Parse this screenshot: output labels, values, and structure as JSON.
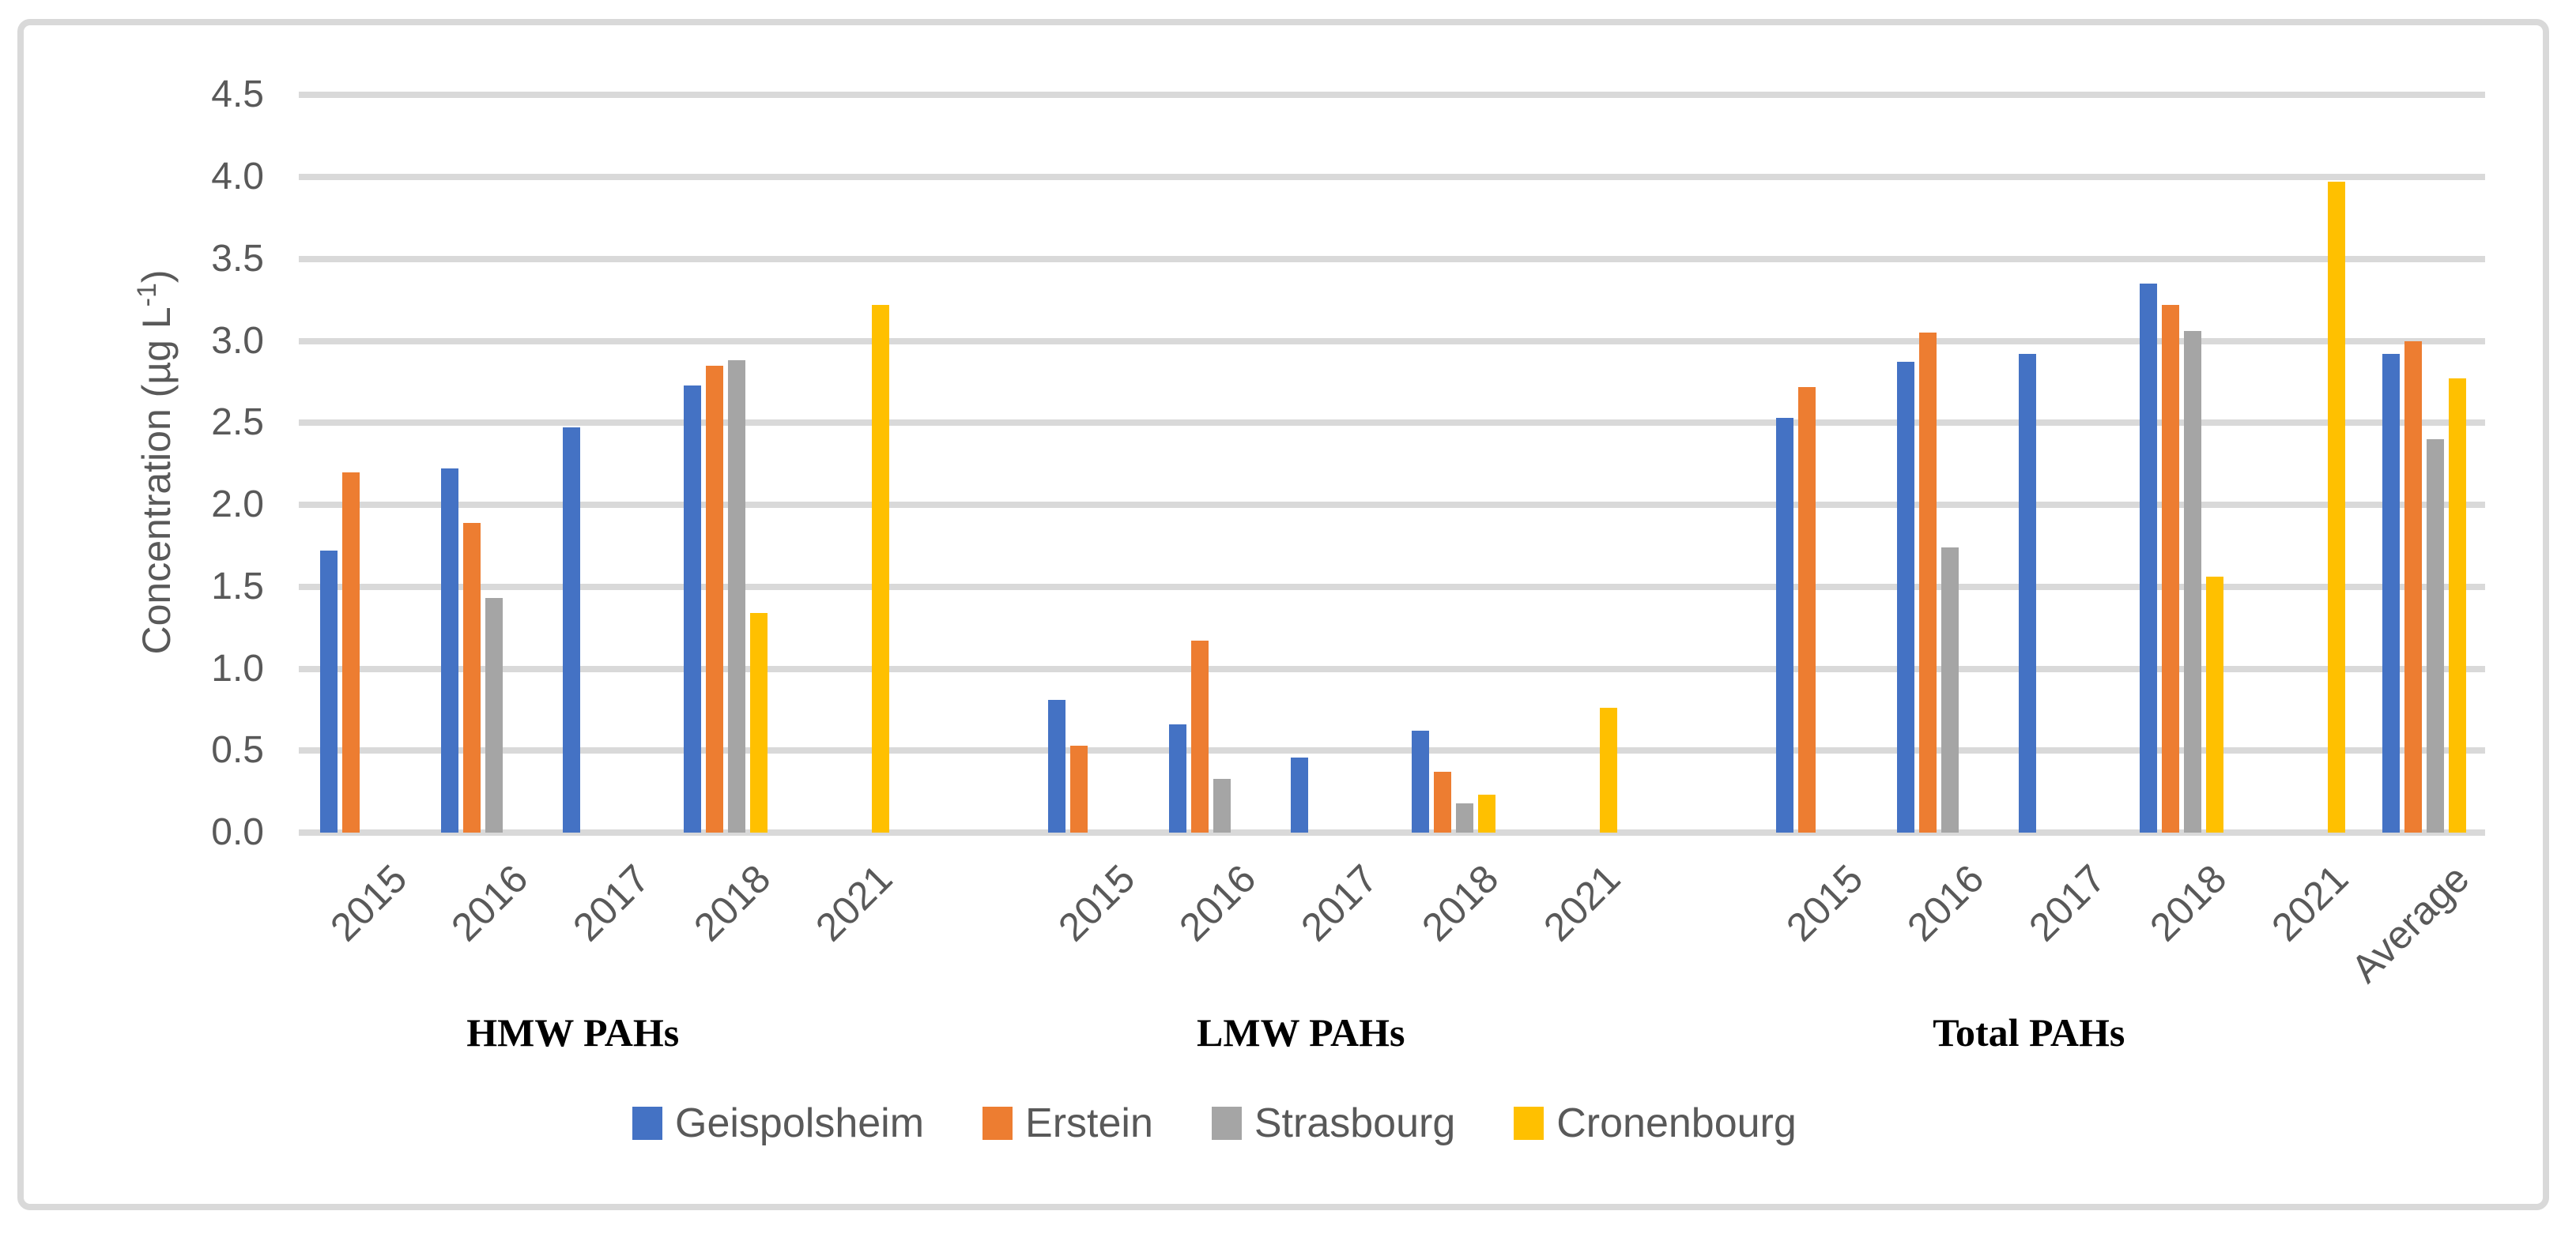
{
  "chart_data": {
    "type": "bar",
    "title": "",
    "ylabel": {
      "prefix": "Concentration (µg L",
      "sup": "-1",
      "suffix": ")"
    },
    "ylabel_text": "Concentration (µg L⁻¹)",
    "ylim": [
      0,
      4.5
    ],
    "ytick_step": 0.5,
    "ytick_labels": [
      "0.0",
      "0.5",
      "1.0",
      "1.5",
      "2.0",
      "2.5",
      "3.0",
      "3.5",
      "4.0",
      "4.5"
    ],
    "grid": true,
    "legend_position": "bottom",
    "series": [
      {
        "name": "Geispolsheim",
        "color": "#4472C4"
      },
      {
        "name": "Erstein",
        "color": "#ED7D31"
      },
      {
        "name": "Strasbourg",
        "color": "#A5A5A5"
      },
      {
        "name": "Cronenbourg",
        "color": "#FFC000"
      }
    ],
    "groups": [
      {
        "label": "HMW PAHs",
        "clusters": [
          {
            "category": "2015",
            "values": [
              1.72,
              2.2,
              null,
              null
            ]
          },
          {
            "category": "2016",
            "values": [
              2.22,
              1.89,
              1.43,
              null
            ]
          },
          {
            "category": "2017",
            "values": [
              2.47,
              null,
              null,
              null
            ]
          },
          {
            "category": "2018",
            "values": [
              2.73,
              2.85,
              2.88,
              1.34
            ]
          },
          {
            "category": "2021",
            "values": [
              null,
              null,
              null,
              3.22
            ]
          }
        ]
      },
      {
        "label": "LMW PAHs",
        "clusters": [
          {
            "category": "2015",
            "values": [
              0.81,
              0.53,
              null,
              null
            ]
          },
          {
            "category": "2016",
            "values": [
              0.66,
              1.17,
              0.33,
              null
            ]
          },
          {
            "category": "2017",
            "values": [
              0.46,
              null,
              null,
              null
            ]
          },
          {
            "category": "2018",
            "values": [
              0.62,
              0.37,
              0.18,
              0.23
            ]
          },
          {
            "category": "2021",
            "values": [
              null,
              null,
              null,
              0.76
            ]
          }
        ]
      },
      {
        "label": "Total PAHs",
        "clusters": [
          {
            "category": "2015",
            "values": [
              2.53,
              2.72,
              null,
              null
            ]
          },
          {
            "category": "2016",
            "values": [
              2.87,
              3.05,
              1.74,
              null
            ]
          },
          {
            "category": "2017",
            "values": [
              2.92,
              null,
              null,
              null
            ]
          },
          {
            "category": "2018",
            "values": [
              3.35,
              3.22,
              3.06,
              1.56
            ]
          },
          {
            "category": "2021",
            "values": [
              null,
              null,
              null,
              3.97
            ]
          }
        ]
      },
      {
        "label": "",
        "clusters": [
          {
            "category": "Average",
            "values": [
              2.92,
              3.0,
              2.4,
              2.77
            ]
          }
        ]
      }
    ],
    "colors": {
      "gridline": "#D9D9D9",
      "frame_border": "#D9D9D9",
      "axis_text": "#595959",
      "group_label_text": "#000000"
    }
  }
}
